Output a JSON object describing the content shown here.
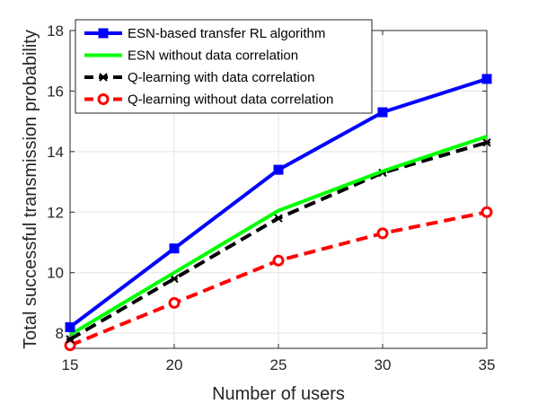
{
  "chart_data": {
    "type": "line",
    "title": "",
    "xlabel": "Number of users",
    "ylabel": "Total successful transmission probability",
    "x": [
      15,
      20,
      25,
      30,
      35
    ],
    "xlim": [
      15,
      35
    ],
    "ylim": [
      7.5,
      18
    ],
    "xticks": [
      15,
      20,
      25,
      30,
      35
    ],
    "yticks": [
      8,
      10,
      12,
      14,
      16,
      18
    ],
    "grid": true,
    "legend_position": "top-left",
    "series": [
      {
        "name": "ESN-based transfer RL algorithm",
        "values": [
          8.2,
          10.8,
          13.4,
          15.3,
          16.4
        ],
        "color": "#0000ff",
        "line_style": "solid",
        "marker": "square"
      },
      {
        "name": "ESN without data correlation",
        "values": [
          7.95,
          10.0,
          12.05,
          13.35,
          14.5
        ],
        "color": "#00ff00",
        "line_style": "solid",
        "marker": "none"
      },
      {
        "name": "Q-learning with data correlation",
        "values": [
          7.8,
          9.8,
          11.8,
          13.3,
          14.3
        ],
        "color": "#000000",
        "line_style": "dashed",
        "marker": "asterisk"
      },
      {
        "name": "Q-learning without data correlation",
        "values": [
          7.6,
          9.0,
          10.4,
          11.3,
          12.0
        ],
        "color": "#ff0000",
        "line_style": "dashed",
        "marker": "circle"
      }
    ]
  }
}
